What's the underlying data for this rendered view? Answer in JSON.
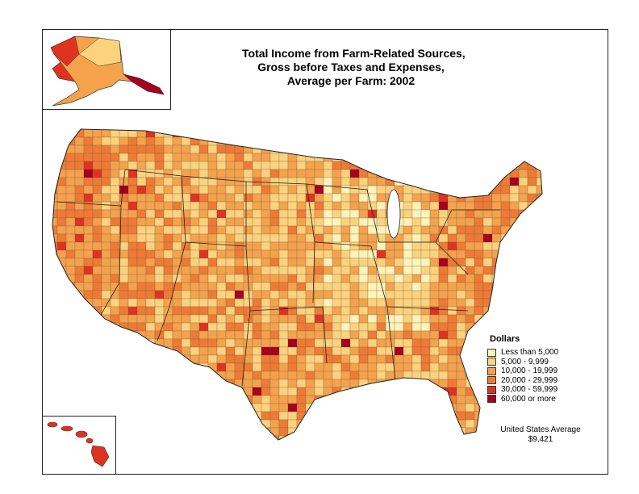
{
  "title": {
    "line1": "Total Income from Farm-Related Sources,",
    "line2": "Gross before Taxes and Expenses,",
    "line3": "Average per Farm:  2002"
  },
  "legend": {
    "title": "Dollars",
    "items": [
      {
        "label": "Less than 5,000",
        "color": "#fff3b8"
      },
      {
        "label": "5,000 - 9,999",
        "color": "#fcd27c"
      },
      {
        "label": "10,000 - 19,999",
        "color": "#f5a24c"
      },
      {
        "label": "20,000 - 29,999",
        "color": "#ef7a34"
      },
      {
        "label": "30,000 - 59,999",
        "color": "#e0331f"
      },
      {
        "label": "60,000 or more",
        "color": "#a8001e"
      }
    ]
  },
  "average": {
    "label": "United States Average",
    "value": "$9,421"
  },
  "colors": {
    "border": "#333333",
    "background": "#ffffff"
  }
}
